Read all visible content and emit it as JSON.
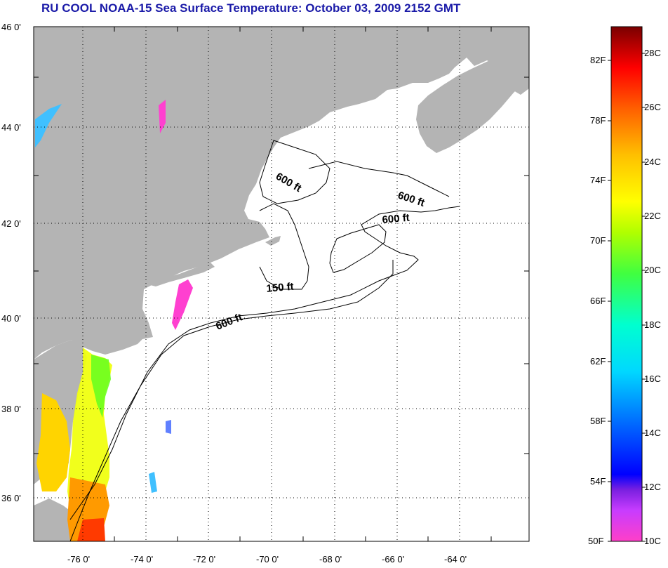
{
  "title": "RU COOL  NOAA-15  Sea Surface Temperature:  October 03, 2009 2152 GMT",
  "map": {
    "lat_labels": [
      "46 0'",
      "44 0'",
      "42 0'",
      "40 0'",
      "38 0'",
      "36 0'"
    ],
    "lon_labels": [
      "-76 0'",
      "-74 0'",
      "-72 0'",
      "-70 0'",
      "-68 0'",
      "-66 0'",
      "-64 0'"
    ],
    "contour_labels": [
      "600 ft",
      "600 ft",
      "600 ft",
      "150 ft",
      "600 ft"
    ],
    "colors": {
      "land": "#b4b4b4",
      "ocean": "#ffffff",
      "gridline": "#000000"
    }
  },
  "colorbar": {
    "fahrenheit_labels": [
      "82F",
      "78F",
      "74F",
      "70F",
      "66F",
      "62F",
      "58F",
      "54F",
      "50F"
    ],
    "celsius_labels": [
      "28C",
      "26C",
      "24C",
      "22C",
      "20C",
      "18C",
      "16C",
      "14C",
      "12C",
      "10C"
    ],
    "range_F": [
      50,
      84
    ],
    "range_C": [
      10,
      29
    ]
  }
}
